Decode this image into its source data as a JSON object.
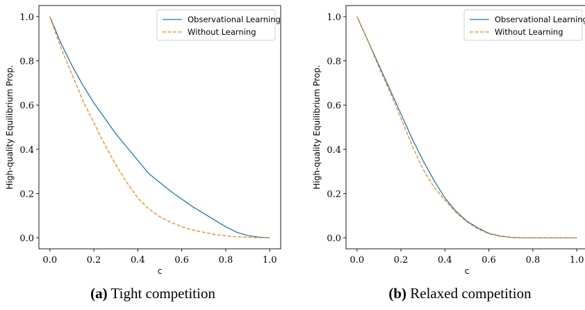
{
  "chart_data": [
    {
      "type": "line",
      "caption_tag": "(a)",
      "caption_text": "Tight competition",
      "xlabel": "c",
      "ylabel": "High-quality Equilibrium Prop.",
      "xlim": [
        -0.05,
        1.05
      ],
      "ylim": [
        -0.05,
        1.05
      ],
      "xticks": [
        "0.0",
        "0.2",
        "0.4",
        "0.6",
        "0.8",
        "1.0"
      ],
      "yticks": [
        "0.0",
        "0.2",
        "0.4",
        "0.6",
        "0.8",
        "1.0"
      ],
      "grid": false,
      "legend_position": "top-right",
      "x": [
        0.0,
        0.05,
        0.1,
        0.15,
        0.2,
        0.25,
        0.3,
        0.35,
        0.4,
        0.45,
        0.5,
        0.55,
        0.6,
        0.65,
        0.7,
        0.75,
        0.8,
        0.85,
        0.9,
        0.95,
        1.0
      ],
      "series": [
        {
          "name": "Observational Learning",
          "color": "#1f77b4",
          "dash": "solid",
          "values": [
            1.0,
            0.88,
            0.78,
            0.69,
            0.61,
            0.54,
            0.47,
            0.41,
            0.35,
            0.29,
            0.25,
            0.21,
            0.175,
            0.14,
            0.11,
            0.08,
            0.05,
            0.025,
            0.01,
            0.003,
            0.0
          ]
        },
        {
          "name": "Without Learning",
          "color": "#ff7f0e",
          "dash": "dashed",
          "values": [
            1.0,
            0.86,
            0.74,
            0.62,
            0.52,
            0.42,
            0.33,
            0.25,
            0.18,
            0.13,
            0.095,
            0.07,
            0.05,
            0.035,
            0.025,
            0.015,
            0.009,
            0.004,
            0.002,
            0.0005,
            0.0
          ]
        }
      ]
    },
    {
      "type": "line",
      "caption_tag": "(b)",
      "caption_text": "Relaxed competition",
      "xlabel": "c",
      "ylabel": "High-quality Equilibrium Prop.",
      "xlim": [
        -0.05,
        1.05
      ],
      "ylim": [
        -0.05,
        1.05
      ],
      "xticks": [
        "0.0",
        "0.2",
        "0.4",
        "0.6",
        "0.8",
        "1.0"
      ],
      "yticks": [
        "0.0",
        "0.2",
        "0.4",
        "0.6",
        "0.8",
        "1.0"
      ],
      "grid": false,
      "legend_position": "top-right",
      "x": [
        0.0,
        0.05,
        0.1,
        0.15,
        0.2,
        0.25,
        0.3,
        0.35,
        0.4,
        0.45,
        0.5,
        0.55,
        0.6,
        0.65,
        0.7,
        0.75,
        0.8,
        0.85,
        0.9,
        0.95,
        1.0
      ],
      "series": [
        {
          "name": "Observational Learning",
          "color": "#1f77b4",
          "dash": "solid",
          "values": [
            1.0,
            0.89,
            0.78,
            0.67,
            0.56,
            0.45,
            0.35,
            0.26,
            0.18,
            0.12,
            0.075,
            0.045,
            0.02,
            0.008,
            0.002,
            0.0,
            0.0,
            0.0,
            0.0,
            0.0,
            0.0
          ]
        },
        {
          "name": "Without Learning",
          "color": "#ff7f0e",
          "dash": "dashed",
          "values": [
            1.0,
            0.89,
            0.77,
            0.66,
            0.54,
            0.42,
            0.31,
            0.23,
            0.17,
            0.115,
            0.072,
            0.04,
            0.018,
            0.007,
            0.002,
            0.0,
            0.0,
            0.0,
            0.0,
            0.0,
            0.0
          ]
        }
      ]
    }
  ]
}
